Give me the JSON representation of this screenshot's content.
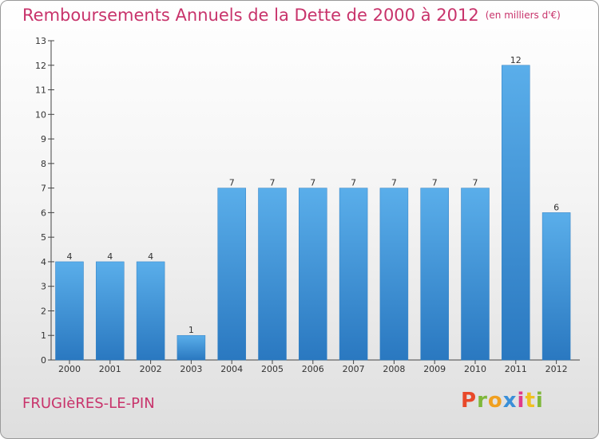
{
  "chart_data": {
    "type": "bar",
    "title": "Remboursements Annuels de la Dette de 2000 à 2012",
    "subtitle": "(en milliers d'€)",
    "categories": [
      "2000",
      "2001",
      "2002",
      "2003",
      "2004",
      "2005",
      "2006",
      "2007",
      "2008",
      "2009",
      "2010",
      "2011",
      "2012"
    ],
    "values": [
      4,
      4,
      4,
      1,
      7,
      7,
      7,
      7,
      7,
      7,
      7,
      12,
      6
    ],
    "ylim": [
      0,
      13
    ],
    "yticks": [
      0,
      1,
      2,
      3,
      4,
      5,
      6,
      7,
      8,
      9,
      10,
      11,
      12,
      13
    ],
    "grid": false,
    "bar_color": "#4a9ee0"
  },
  "footer": {
    "place": "FRUGIèRES-LE-PIN",
    "logo": "Proxiti"
  },
  "colors": {
    "title": "#c8336b",
    "logo_letters": [
      "#e8492a",
      "#7fb83a",
      "#f0a020",
      "#3a8fd8",
      "#e03a8a",
      "#f0c020",
      "#7fb83a"
    ]
  }
}
